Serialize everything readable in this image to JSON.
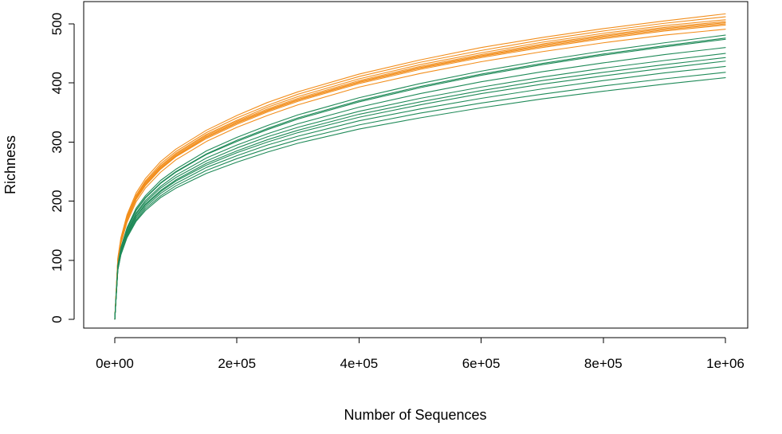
{
  "chart_data": {
    "type": "line",
    "title": "",
    "xlabel": "Number of Sequences",
    "ylabel": "Richness",
    "xlim": [
      0,
      1000000
    ],
    "ylim": [
      0,
      520
    ],
    "x_ticks": [
      0,
      200000,
      400000,
      600000,
      800000,
      1000000
    ],
    "x_tick_labels": [
      "0e+00",
      "2e+05",
      "4e+05",
      "6e+05",
      "8e+05",
      "1e+06"
    ],
    "y_ticks": [
      0,
      100,
      200,
      300,
      400,
      500
    ],
    "y_tick_labels": [
      "0",
      "100",
      "200",
      "300",
      "400",
      "500"
    ],
    "grid": false,
    "legend": "none",
    "colors": {
      "orange": "#F28E1C",
      "green": "#1F8A58",
      "axis": "#000000"
    },
    "x": [
      0,
      5000,
      10000,
      20000,
      35000,
      50000,
      75000,
      100000,
      150000,
      200000,
      250000,
      300000,
      400000,
      500000,
      600000,
      700000,
      800000,
      900000,
      1000000
    ],
    "series": [
      {
        "group": "orange",
        "color": "#F28E1C",
        "values": [
          0,
          104,
          138,
          177,
          214,
          238,
          267,
          288,
          320,
          345,
          367,
          385,
          415,
          439,
          460,
          477,
          492,
          505,
          517
        ]
      },
      {
        "group": "orange",
        "color": "#F28E1C",
        "values": [
          0,
          102,
          136,
          174,
          210,
          234,
          263,
          284,
          316,
          341,
          362,
          381,
          411,
          435,
          455,
          473,
          488,
          501,
          512
        ]
      },
      {
        "group": "orange",
        "color": "#F28E1C",
        "values": [
          0,
          101,
          134,
          172,
          208,
          232,
          260,
          281,
          313,
          337,
          359,
          377,
          407,
          431,
          451,
          469,
          484,
          497,
          507
        ]
      },
      {
        "group": "orange",
        "color": "#F28E1C",
        "values": [
          0,
          100,
          133,
          170,
          206,
          230,
          258,
          279,
          311,
          335,
          356,
          374,
          404,
          428,
          448,
          466,
          481,
          494,
          504
        ]
      },
      {
        "group": "orange",
        "color": "#F28E1C",
        "values": [
          0,
          99,
          132,
          169,
          205,
          228,
          256,
          277,
          309,
          333,
          354,
          372,
          402,
          426,
          446,
          464,
          479,
          492,
          502
        ]
      },
      {
        "group": "orange",
        "color": "#F28E1C",
        "values": [
          0,
          99,
          131,
          168,
          204,
          227,
          255,
          276,
          308,
          332,
          353,
          371,
          401,
          425,
          445,
          462,
          477,
          490,
          500
        ]
      },
      {
        "group": "orange",
        "color": "#F28E1C",
        "values": [
          0,
          98,
          130,
          167,
          203,
          226,
          254,
          275,
          306,
          330,
          351,
          369,
          399,
          423,
          443,
          460,
          475,
          488,
          498
        ]
      },
      {
        "group": "orange",
        "color": "#F28E1C",
        "values": [
          0,
          96,
          128,
          164,
          199,
          222,
          249,
          270,
          301,
          325,
          345,
          363,
          393,
          416,
          436,
          453,
          468,
          481,
          491
        ]
      },
      {
        "group": "green",
        "color": "#1F8A58",
        "values": [
          0,
          92,
          122,
          155,
          188,
          209,
          235,
          254,
          285,
          308,
          328,
          346,
          375,
          399,
          420,
          438,
          454,
          468,
          481
        ]
      },
      {
        "group": "green",
        "color": "#1F8A58",
        "values": [
          0,
          91,
          120,
          153,
          185,
          206,
          231,
          250,
          280,
          303,
          323,
          341,
          370,
          394,
          415,
          433,
          449,
          463,
          476
        ]
      },
      {
        "group": "green",
        "color": "#1F8A58",
        "values": [
          0,
          90,
          119,
          152,
          184,
          205,
          230,
          249,
          279,
          301,
          321,
          339,
          368,
          392,
          413,
          431,
          447,
          461,
          474
        ]
      },
      {
        "group": "green",
        "color": "#1F8A58",
        "values": [
          0,
          89,
          117,
          149,
          180,
          201,
          225,
          244,
          273,
          295,
          314,
          331,
          359,
          382,
          402,
          419,
          434,
          448,
          460
        ]
      },
      {
        "group": "green",
        "color": "#1F8A58",
        "values": [
          0,
          88,
          116,
          147,
          178,
          198,
          222,
          240,
          268,
          290,
          309,
          325,
          352,
          374,
          393,
          410,
          425,
          438,
          450
        ]
      },
      {
        "group": "green",
        "color": "#1F8A58",
        "values": [
          0,
          87,
          114,
          145,
          175,
          195,
          218,
          236,
          264,
          285,
          304,
          320,
          347,
          368,
          387,
          404,
          418,
          431,
          443
        ]
      },
      {
        "group": "green",
        "color": "#1F8A58",
        "values": [
          0,
          86,
          113,
          144,
          174,
          193,
          216,
          234,
          261,
          282,
          300,
          316,
          342,
          363,
          382,
          398,
          412,
          425,
          437
        ]
      },
      {
        "group": "green",
        "color": "#1F8A58",
        "values": [
          0,
          85,
          112,
          142,
          171,
          190,
          213,
          230,
          257,
          277,
          295,
          310,
          336,
          356,
          374,
          390,
          404,
          417,
          428
        ]
      },
      {
        "group": "green",
        "color": "#1F8A58",
        "values": [
          0,
          84,
          110,
          140,
          168,
          187,
          209,
          226,
          252,
          272,
          289,
          304,
          329,
          349,
          366,
          381,
          395,
          407,
          418
        ]
      },
      {
        "group": "green",
        "color": "#1F8A58",
        "values": [
          0,
          83,
          109,
          138,
          166,
          184,
          206,
          222,
          247,
          266,
          283,
          298,
          322,
          341,
          358,
          373,
          386,
          398,
          409
        ]
      }
    ]
  }
}
